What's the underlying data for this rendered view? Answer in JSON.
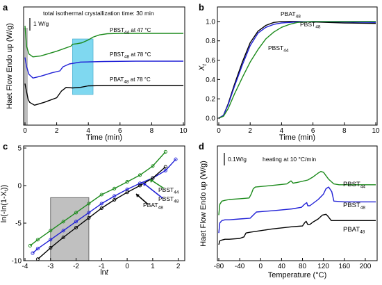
{
  "panels": {
    "a": {
      "label": "a",
      "annotation": "total isothermal crystallization time: 30 min",
      "scalebar": "1 W/g"
    },
    "b": {
      "label": "b"
    },
    "c": {
      "label": "c"
    },
    "d": {
      "label": "d",
      "annotation": "heating at 10 °C/min",
      "scalebar": "0.1W/g"
    }
  },
  "colors": {
    "black": "#000000",
    "blue": "#1f1fd6",
    "green": "#1b8a1b",
    "cyan_box": "#7fd8f0",
    "gray_box": "#c0c0c0"
  },
  "chart_data": [
    {
      "panel": "a",
      "type": "line",
      "xlabel": "Time (min)",
      "ylabel": "Haet Flow Endo up (W/g)",
      "xlim": [
        0,
        10
      ],
      "xticks": [
        "0",
        "2",
        "4",
        "6",
        "8",
        "10"
      ],
      "yticks_shown": false,
      "series": [
        {
          "name": "PBST44 at 47 °C",
          "label_main": "PBST",
          "label_sub": "44",
          "label_tail": " at 47 °C",
          "color": "#1b8a1b",
          "x": [
            0,
            0.1,
            0.25,
            0.5,
            1,
            2,
            2.9,
            3,
            3.3,
            3.6,
            4,
            4.3,
            4.7,
            5.2,
            6,
            8,
            10
          ],
          "y": [
            1.8,
            0.7,
            0.3,
            0.15,
            0.2,
            0.45,
            0.72,
            0.82,
            0.85,
            0.9,
            1.05,
            1.2,
            1.32,
            1.38,
            1.4,
            1.4,
            1.4
          ]
        },
        {
          "name": "PBST48 at 78 °C",
          "label_main": "PBST",
          "label_sub": "48",
          "label_tail": " at 78 °C",
          "color": "#1f1fd6",
          "x": [
            0,
            0.1,
            0.25,
            0.5,
            1,
            1.7,
            2.2,
            2.4,
            2.8,
            3.5,
            5,
            7,
            10
          ],
          "y": [
            0.2,
            -0.3,
            -0.7,
            -0.9,
            -0.8,
            -0.62,
            -0.52,
            -0.3,
            -0.15,
            -0.05,
            -0.02,
            0,
            0
          ]
        },
        {
          "name": "PBAT48 at 78 °C",
          "label_main": "PBAT",
          "label_sub": "48",
          "label_tail": " at 78 °C",
          "color": "#000000",
          "x": [
            0,
            0.1,
            0.2,
            0.3,
            0.6,
            1.2,
            2,
            2.3,
            2.6,
            3,
            3.5,
            4,
            5,
            7,
            10
          ],
          "y": [
            -1.1,
            -1.55,
            -1.95,
            -2.1,
            -2.25,
            -2.1,
            -1.85,
            -1.5,
            -1.3,
            -1.33,
            -1.3,
            -1.22,
            -1.2,
            -1.2,
            -1.2
          ]
        }
      ],
      "highlight_box": {
        "x": [
          3,
          4.3
        ],
        "y": [
          -1.4,
          1.0
        ],
        "color": "#7fd8f0"
      }
    },
    {
      "panel": "b",
      "type": "line",
      "xlabel": "Time (min)",
      "ylabel": "Xt",
      "xlim": [
        0,
        10
      ],
      "ylim": [
        0,
        1.1
      ],
      "xticks": [
        "0",
        "2",
        "4",
        "6",
        "8",
        "10"
      ],
      "yticks": [
        "0.0",
        "0.2",
        "0.4",
        "0.6",
        "0.8",
        "1.0"
      ],
      "series": [
        {
          "name": "PBAT48",
          "label_main": "PBAT",
          "label_sub": "48",
          "color": "#000000",
          "x": [
            0,
            0.3,
            0.6,
            1,
            1.5,
            2,
            2.5,
            3,
            3.5,
            4,
            5,
            6,
            8,
            10
          ],
          "y": [
            0,
            0.03,
            0.15,
            0.35,
            0.58,
            0.78,
            0.9,
            0.96,
            0.99,
            1.0,
            1.0,
            0.995,
            0.985,
            0.98
          ]
        },
        {
          "name": "PBST48",
          "label_main": "PBST",
          "label_sub": "48",
          "color": "#1f1fd6",
          "x": [
            0,
            0.3,
            0.6,
            1,
            1.5,
            2,
            2.5,
            3,
            3.5,
            4,
            5,
            6,
            8,
            10
          ],
          "y": [
            0,
            0.03,
            0.14,
            0.33,
            0.55,
            0.75,
            0.88,
            0.94,
            0.97,
            0.985,
            0.995,
            1.0,
            0.995,
            0.99
          ]
        },
        {
          "name": "PBST44",
          "label_main": "PBST",
          "label_sub": "44",
          "color": "#1b8a1b",
          "x": [
            0,
            0.3,
            0.6,
            1,
            1.5,
            2,
            2.5,
            3,
            3.5,
            4,
            4.5,
            5,
            6,
            8,
            10
          ],
          "y": [
            0,
            0.02,
            0.1,
            0.25,
            0.42,
            0.58,
            0.71,
            0.82,
            0.89,
            0.94,
            0.97,
            0.99,
            1.0,
            1.0,
            1.0
          ]
        }
      ]
    },
    {
      "panel": "c",
      "type": "scatter",
      "xlabel": "lnt",
      "ylabel": "ln(-ln(1-Xt))",
      "xlim": [
        -4,
        2.2
      ],
      "ylim": [
        -10,
        5
      ],
      "xticks": [
        "-4",
        "-3",
        "-2",
        "-1",
        "0",
        "1",
        "2"
      ],
      "yticks": [
        "-10",
        "-5",
        "0",
        "5"
      ],
      "series": [
        {
          "name": "PBST44",
          "label_main": "PBST",
          "label_sub": "44",
          "color": "#1b8a1b",
          "x": [
            -3.8,
            -3.5,
            -3,
            -2.5,
            -2,
            -1.5,
            -1,
            -0.5,
            0,
            0.5,
            1,
            1.5
          ],
          "y": [
            -8.0,
            -7.2,
            -6.0,
            -4.8,
            -3.6,
            -2.4,
            -1.2,
            -0.4,
            0.5,
            1.4,
            2.6,
            4.5
          ]
        },
        {
          "name": "PBST48",
          "label_main": "PBST",
          "label_sub": "48",
          "color": "#1f1fd6",
          "x": [
            -3.7,
            -3.5,
            -3,
            -2.5,
            -2,
            -1.5,
            -1,
            -0.5,
            0,
            0.5,
            1,
            1.5,
            1.9
          ],
          "y": [
            -9.0,
            -8.4,
            -7.2,
            -6.0,
            -4.8,
            -3.6,
            -2.4,
            -1.4,
            -0.5,
            0.3,
            1.0,
            2.0,
            3.5
          ]
        },
        {
          "name": "PBAT48",
          "label_main": "PBAT",
          "label_sub": "48",
          "color": "#000000",
          "x": [
            -3.5,
            -3,
            -2.5,
            -2,
            -1.5,
            -1,
            -0.5,
            0,
            0.5,
            1,
            1.5
          ],
          "y": [
            -9.8,
            -8.3,
            -6.9,
            -5.6,
            -4.3,
            -3.0,
            -1.9,
            -0.9,
            0,
            1.0,
            2.5
          ]
        }
      ],
      "highlight_box": {
        "x": [
          -3,
          -1.5
        ],
        "y": [
          -10,
          -1.6
        ],
        "color": "#c0c0c0"
      }
    },
    {
      "panel": "d",
      "type": "line",
      "xlabel": "Temperature (°C)",
      "ylabel": "Haet Flow Endo up (W/g)",
      "xlim": [
        -80,
        220
      ],
      "xticks": [
        "-80",
        "-40",
        "0",
        "40",
        "80",
        "120",
        "160",
        "200"
      ],
      "yticks_shown": false,
      "series": [
        {
          "name": "PBST44",
          "label_main": "PBST",
          "label_sub": "44",
          "color": "#1b8a1b",
          "x": [
            -80,
            -78,
            -74,
            -68,
            -60,
            -40,
            -22,
            -18,
            -14,
            -10,
            20,
            50,
            54,
            58,
            62,
            70,
            90,
            100,
            110,
            115,
            120,
            130,
            140,
            150,
            220
          ],
          "y": [
            0.38,
            0.52,
            0.56,
            0.57,
            0.58,
            0.59,
            0.6,
            0.65,
            0.72,
            0.74,
            0.76,
            0.78,
            0.8,
            0.82,
            0.79,
            0.8,
            0.83,
            0.87,
            0.92,
            0.94,
            0.93,
            0.84,
            0.78,
            0.77,
            0.77
          ]
        },
        {
          "name": "PBST48",
          "label_main": "PBST",
          "label_sub": "48",
          "color": "#1f1fd6",
          "x": [
            -80,
            -78,
            -74,
            -68,
            -60,
            -40,
            -20,
            -14,
            -8,
            30,
            60,
            78,
            84,
            88,
            90,
            94,
            110,
            120,
            125,
            130,
            136,
            140,
            160,
            220
          ],
          "y": [
            0.15,
            0.28,
            0.31,
            0.32,
            0.32,
            0.33,
            0.34,
            0.38,
            0.42,
            0.44,
            0.46,
            0.48,
            0.52,
            0.54,
            0.5,
            0.5,
            0.58,
            0.65,
            0.72,
            0.74,
            0.68,
            0.56,
            0.55,
            0.55
          ]
        },
        {
          "name": "PBAT48",
          "label_main": "PBAT",
          "label_sub": "48",
          "color": "#000000",
          "x": [
            -80,
            -78,
            -74,
            -68,
            -60,
            -40,
            -32,
            -28,
            -20,
            20,
            60,
            80,
            84,
            87,
            90,
            94,
            100,
            110,
            118,
            125,
            128,
            135,
            150,
            220
          ],
          "y": [
            0.0,
            0.05,
            0.06,
            0.07,
            0.07,
            0.08,
            0.1,
            0.15,
            0.16,
            0.2,
            0.23,
            0.24,
            0.28,
            0.3,
            0.26,
            0.26,
            0.29,
            0.33,
            0.38,
            0.39,
            0.37,
            0.31,
            0.31,
            0.31
          ]
        }
      ]
    }
  ]
}
